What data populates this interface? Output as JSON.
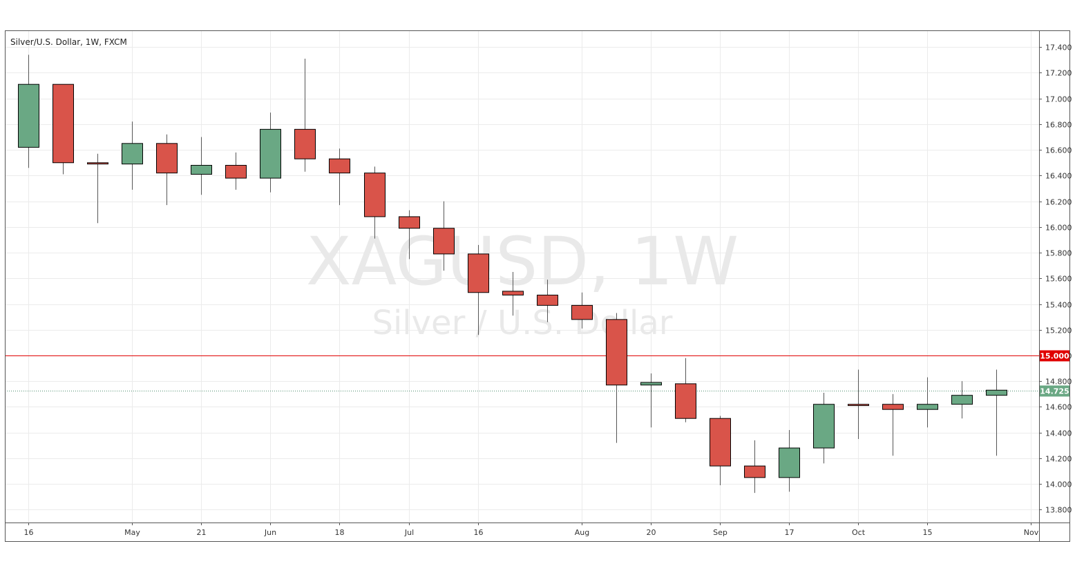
{
  "chart_data": {
    "type": "candlestick",
    "title": "Silver/U.S. Dollar, 1W, FXCM",
    "watermark": {
      "symbol": "XAGUSD, 1W",
      "description": "Silver / U.S. Dollar"
    },
    "ylim": [
      13.7,
      17.53
    ],
    "y_ticks": [
      "17.400",
      "17.200",
      "17.000",
      "16.800",
      "16.600",
      "16.400",
      "16.200",
      "16.000",
      "15.800",
      "15.600",
      "15.400",
      "15.200",
      "15.000",
      "14.800",
      "14.600",
      "14.400",
      "14.200",
      "14.000",
      "13.800"
    ],
    "x_ticks": [
      {
        "label": "16",
        "index": 0
      },
      {
        "label": "May",
        "index": 3
      },
      {
        "label": "21",
        "index": 5
      },
      {
        "label": "Jun",
        "index": 7
      },
      {
        "label": "18",
        "index": 9
      },
      {
        "label": "Jul",
        "index": 11
      },
      {
        "label": "16",
        "index": 13
      },
      {
        "label": "Aug",
        "index": 16
      },
      {
        "label": "20",
        "index": 18
      },
      {
        "label": "Sep",
        "index": 20
      },
      {
        "label": "17",
        "index": 22
      },
      {
        "label": "Oct",
        "index": 24
      },
      {
        "label": "15",
        "index": 26
      },
      {
        "label": "Nov",
        "index": 29
      }
    ],
    "candles": [
      {
        "o": 16.62,
        "h": 17.34,
        "l": 16.46,
        "c": 17.11
      },
      {
        "o": 17.11,
        "h": 17.11,
        "l": 16.41,
        "c": 16.5
      },
      {
        "o": 16.5,
        "h": 16.57,
        "l": 16.03,
        "c": 16.49
      },
      {
        "o": 16.49,
        "h": 16.82,
        "l": 16.29,
        "c": 16.65
      },
      {
        "o": 16.65,
        "h": 16.72,
        "l": 16.17,
        "c": 16.42
      },
      {
        "o": 16.41,
        "h": 16.7,
        "l": 16.25,
        "c": 16.48
      },
      {
        "o": 16.48,
        "h": 16.58,
        "l": 16.29,
        "c": 16.38
      },
      {
        "o": 16.38,
        "h": 16.89,
        "l": 16.27,
        "c": 16.76
      },
      {
        "o": 16.76,
        "h": 17.31,
        "l": 16.43,
        "c": 16.53
      },
      {
        "o": 16.53,
        "h": 16.61,
        "l": 16.17,
        "c": 16.42
      },
      {
        "o": 16.42,
        "h": 16.47,
        "l": 15.91,
        "c": 16.08
      },
      {
        "o": 16.08,
        "h": 16.13,
        "l": 15.75,
        "c": 15.99
      },
      {
        "o": 15.99,
        "h": 16.2,
        "l": 15.66,
        "c": 15.79
      },
      {
        "o": 15.79,
        "h": 15.86,
        "l": 15.16,
        "c": 15.49
      },
      {
        "o": 15.5,
        "h": 15.65,
        "l": 15.31,
        "c": 15.47
      },
      {
        "o": 15.47,
        "h": 15.59,
        "l": 15.26,
        "c": 15.39
      },
      {
        "o": 15.39,
        "h": 15.49,
        "l": 15.21,
        "c": 15.28
      },
      {
        "o": 15.28,
        "h": 15.33,
        "l": 14.32,
        "c": 14.77
      },
      {
        "o": 14.77,
        "h": 14.86,
        "l": 14.44,
        "c": 14.79
      },
      {
        "o": 14.78,
        "h": 14.98,
        "l": 14.48,
        "c": 14.51
      },
      {
        "o": 14.51,
        "h": 14.53,
        "l": 13.99,
        "c": 14.14
      },
      {
        "o": 14.14,
        "h": 14.34,
        "l": 13.93,
        "c": 14.05
      },
      {
        "o": 14.05,
        "h": 14.42,
        "l": 13.94,
        "c": 14.28
      },
      {
        "o": 14.28,
        "h": 14.71,
        "l": 14.16,
        "c": 14.62
      },
      {
        "o": 14.62,
        "h": 14.89,
        "l": 14.35,
        "c": 14.61
      },
      {
        "o": 14.62,
        "h": 14.7,
        "l": 14.22,
        "c": 14.58
      },
      {
        "o": 14.58,
        "h": 14.83,
        "l": 14.44,
        "c": 14.62
      },
      {
        "o": 14.62,
        "h": 14.8,
        "l": 14.51,
        "c": 14.69
      },
      {
        "o": 14.69,
        "h": 14.89,
        "l": 14.22,
        "c": 14.73
      }
    ],
    "horizontal_line": {
      "value": 15.0,
      "label": "15.000",
      "color": "#e00000"
    },
    "last_price": {
      "value": 14.725,
      "label": "14.725",
      "color": "#6aa884"
    },
    "colors": {
      "up": "#6aa884",
      "down": "#d9544a",
      "wick": "#555555",
      "border": "#000000"
    },
    "grid": true
  }
}
